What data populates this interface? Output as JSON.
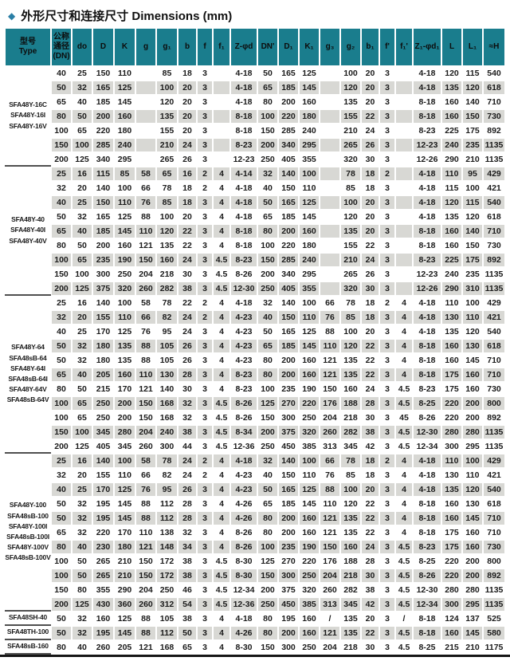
{
  "title": {
    "bullet": "◆",
    "text": "外形尺寸和连接尺寸 Dimensions (mm)"
  },
  "colors": {
    "header_bg": "#1a7d8d",
    "stripe": "#d8d8d4",
    "diamond": "#2a7fa6",
    "separator": "#4f4f4f",
    "bottom_rule": "#161616"
  },
  "table": {
    "header": [
      "型号\nType",
      "公称\n通径\n(DN)",
      "do",
      "D",
      "K",
      "g",
      "g₁",
      "b",
      "f",
      "f₁",
      "Z-φd",
      "DN'",
      "D₁",
      "K₁",
      "g₃",
      "g₂",
      "b₁",
      "f'",
      "f₁'",
      "Z₁-φd₁",
      "L",
      "L₁",
      "≈H"
    ],
    "groups": [
      {
        "type_labels": [
          "SFA48Y-16C",
          "SFA48Y-16I",
          "SFA48Y-16V"
        ],
        "rows": [
          [
            "40",
            "25",
            "150",
            "110",
            "",
            "85",
            "18",
            "3",
            "",
            "4-18",
            "50",
            "165",
            "125",
            "",
            "100",
            "20",
            "3",
            "",
            "4-18",
            "120",
            "115",
            "540"
          ],
          [
            "50",
            "32",
            "165",
            "125",
            "",
            "100",
            "20",
            "3",
            "",
            "4-18",
            "65",
            "185",
            "145",
            "",
            "120",
            "20",
            "3",
            "",
            "4-18",
            "135",
            "120",
            "618"
          ],
          [
            "65",
            "40",
            "185",
            "145",
            "",
            "120",
            "20",
            "3",
            "",
            "4-18",
            "80",
            "200",
            "160",
            "",
            "135",
            "20",
            "3",
            "",
            "8-18",
            "160",
            "140",
            "710"
          ],
          [
            "80",
            "50",
            "200",
            "160",
            "",
            "135",
            "20",
            "3",
            "",
            "8-18",
            "100",
            "220",
            "180",
            "",
            "155",
            "22",
            "3",
            "",
            "8-18",
            "160",
            "150",
            "730"
          ],
          [
            "100",
            "65",
            "220",
            "180",
            "",
            "155",
            "20",
            "3",
            "",
            "8-18",
            "150",
            "285",
            "240",
            "",
            "210",
            "24",
            "3",
            "",
            "8-23",
            "225",
            "175",
            "892"
          ],
          [
            "150",
            "100",
            "285",
            "240",
            "",
            "210",
            "24",
            "3",
            "",
            "8-23",
            "200",
            "340",
            "295",
            "",
            "265",
            "26",
            "3",
            "",
            "12-23",
            "240",
            "235",
            "1135"
          ],
          [
            "200",
            "125",
            "340",
            "295",
            "",
            "265",
            "26",
            "3",
            "",
            "12-23",
            "250",
            "405",
            "355",
            "",
            "320",
            "30",
            "3",
            "",
            "12-26",
            "290",
            "210",
            "1135"
          ]
        ]
      },
      {
        "type_labels": [
          "SFA48Y-40",
          "SFA48Y-40I",
          "SFA48Y-40V"
        ],
        "rows": [
          [
            "25",
            "16",
            "115",
            "85",
            "58",
            "65",
            "16",
            "2",
            "4",
            "4-14",
            "32",
            "140",
            "100",
            "",
            "78",
            "18",
            "2",
            "",
            "4-18",
            "110",
            "95",
            "429"
          ],
          [
            "32",
            "20",
            "140",
            "100",
            "66",
            "78",
            "18",
            "2",
            "4",
            "4-18",
            "40",
            "150",
            "110",
            "",
            "85",
            "18",
            "3",
            "",
            "4-18",
            "115",
            "100",
            "421"
          ],
          [
            "40",
            "25",
            "150",
            "110",
            "76",
            "85",
            "18",
            "3",
            "4",
            "4-18",
            "50",
            "165",
            "125",
            "",
            "100",
            "20",
            "3",
            "",
            "4-18",
            "120",
            "115",
            "540"
          ],
          [
            "50",
            "32",
            "165",
            "125",
            "88",
            "100",
            "20",
            "3",
            "4",
            "4-18",
            "65",
            "185",
            "145",
            "",
            "120",
            "20",
            "3",
            "",
            "4-18",
            "135",
            "120",
            "618"
          ],
          [
            "65",
            "40",
            "185",
            "145",
            "110",
            "120",
            "22",
            "3",
            "4",
            "8-18",
            "80",
            "200",
            "160",
            "",
            "135",
            "20",
            "3",
            "",
            "8-18",
            "160",
            "140",
            "710"
          ],
          [
            "80",
            "50",
            "200",
            "160",
            "121",
            "135",
            "22",
            "3",
            "4",
            "8-18",
            "100",
            "220",
            "180",
            "",
            "155",
            "22",
            "3",
            "",
            "8-18",
            "160",
            "150",
            "730"
          ],
          [
            "100",
            "65",
            "235",
            "190",
            "150",
            "160",
            "24",
            "3",
            "4.5",
            "8-23",
            "150",
            "285",
            "240",
            "",
            "210",
            "24",
            "3",
            "",
            "8-23",
            "225",
            "175",
            "892"
          ],
          [
            "150",
            "100",
            "300",
            "250",
            "204",
            "218",
            "30",
            "3",
            "4.5",
            "8-26",
            "200",
            "340",
            "295",
            "",
            "265",
            "26",
            "3",
            "",
            "12-23",
            "240",
            "235",
            "1135"
          ],
          [
            "200",
            "125",
            "375",
            "320",
            "260",
            "282",
            "38",
            "3",
            "4.5",
            "12-30",
            "250",
            "405",
            "355",
            "",
            "320",
            "30",
            "3",
            "",
            "12-26",
            "290",
            "310",
            "1135"
          ]
        ]
      },
      {
        "type_labels": [
          "SFA48Y-64",
          "SFA48sB-64",
          "SFA48Y-64I",
          "SFA48sB-64I",
          "SFA48Y-64V",
          "SFA48sB-64V"
        ],
        "rows": [
          [
            "25",
            "16",
            "140",
            "100",
            "58",
            "78",
            "22",
            "2",
            "4",
            "4-18",
            "32",
            "140",
            "100",
            "66",
            "78",
            "18",
            "2",
            "4",
            "4-18",
            "110",
            "100",
            "429"
          ],
          [
            "32",
            "20",
            "155",
            "110",
            "66",
            "82",
            "24",
            "2",
            "4",
            "4-23",
            "40",
            "150",
            "110",
            "76",
            "85",
            "18",
            "3",
            "4",
            "4-18",
            "130",
            "110",
            "421"
          ],
          [
            "40",
            "25",
            "170",
            "125",
            "76",
            "95",
            "24",
            "3",
            "4",
            "4-23",
            "50",
            "165",
            "125",
            "88",
            "100",
            "20",
            "3",
            "4",
            "4-18",
            "135",
            "120",
            "540"
          ],
          [
            "50",
            "32",
            "180",
            "135",
            "88",
            "105",
            "26",
            "3",
            "4",
            "4-23",
            "65",
            "185",
            "145",
            "110",
            "120",
            "22",
            "3",
            "4",
            "8-18",
            "160",
            "130",
            "618"
          ],
          [
            "50",
            "32",
            "180",
            "135",
            "88",
            "105",
            "26",
            "3",
            "4",
            "4-23",
            "80",
            "200",
            "160",
            "121",
            "135",
            "22",
            "3",
            "4",
            "8-18",
            "160",
            "145",
            "710"
          ],
          [
            "65",
            "40",
            "205",
            "160",
            "110",
            "130",
            "28",
            "3",
            "4",
            "8-23",
            "80",
            "200",
            "160",
            "121",
            "135",
            "22",
            "3",
            "4",
            "8-18",
            "175",
            "160",
            "710"
          ],
          [
            "80",
            "50",
            "215",
            "170",
            "121",
            "140",
            "30",
            "3",
            "4",
            "8-23",
            "100",
            "235",
            "190",
            "150",
            "160",
            "24",
            "3",
            "4.5",
            "8-23",
            "175",
            "160",
            "730"
          ],
          [
            "100",
            "65",
            "250",
            "200",
            "150",
            "168",
            "32",
            "3",
            "4.5",
            "8-26",
            "125",
            "270",
            "220",
            "176",
            "188",
            "28",
            "3",
            "4.5",
            "8-25",
            "220",
            "200",
            "800"
          ],
          [
            "100",
            "65",
            "250",
            "200",
            "150",
            "168",
            "32",
            "3",
            "4.5",
            "8-26",
            "150",
            "300",
            "250",
            "204",
            "218",
            "30",
            "3",
            "45",
            "8-26",
            "220",
            "200",
            "892"
          ],
          [
            "150",
            "100",
            "345",
            "280",
            "204",
            "240",
            "38",
            "3",
            "4.5",
            "8-34",
            "200",
            "375",
            "320",
            "260",
            "282",
            "38",
            "3",
            "4.5",
            "12-30",
            "280",
            "280",
            "1135"
          ],
          [
            "200",
            "125",
            "405",
            "345",
            "260",
            "300",
            "44",
            "3",
            "4.5",
            "12-36",
            "250",
            "450",
            "385",
            "313",
            "345",
            "42",
            "3",
            "4.5",
            "12-34",
            "300",
            "295",
            "1135"
          ]
        ]
      },
      {
        "type_labels": [
          "SFA48Y-100",
          "SFA48sB-100",
          "SFA48Y-100I",
          "SFA48sB-100I",
          "SFA48Y-100V",
          "SFA48sB-100V"
        ],
        "rows": [
          [
            "25",
            "16",
            "140",
            "100",
            "58",
            "78",
            "24",
            "2",
            "4",
            "4-18",
            "32",
            "140",
            "100",
            "66",
            "78",
            "18",
            "2",
            "4",
            "4-18",
            "110",
            "100",
            "429"
          ],
          [
            "32",
            "20",
            "155",
            "110",
            "66",
            "82",
            "24",
            "2",
            "4",
            "4-23",
            "40",
            "150",
            "110",
            "76",
            "85",
            "18",
            "3",
            "4",
            "4-18",
            "130",
            "110",
            "421"
          ],
          [
            "40",
            "25",
            "170",
            "125",
            "76",
            "95",
            "26",
            "3",
            "4",
            "4-23",
            "50",
            "165",
            "125",
            "88",
            "100",
            "20",
            "3",
            "4",
            "4-18",
            "135",
            "120",
            "540"
          ],
          [
            "50",
            "32",
            "195",
            "145",
            "88",
            "112",
            "28",
            "3",
            "4",
            "4-26",
            "65",
            "185",
            "145",
            "110",
            "120",
            "22",
            "3",
            "4",
            "8-18",
            "160",
            "130",
            "618"
          ],
          [
            "50",
            "32",
            "195",
            "145",
            "88",
            "112",
            "28",
            "3",
            "4",
            "4-26",
            "80",
            "200",
            "160",
            "121",
            "135",
            "22",
            "3",
            "4",
            "8-18",
            "160",
            "145",
            "710"
          ],
          [
            "65",
            "32",
            "220",
            "170",
            "110",
            "138",
            "32",
            "3",
            "4",
            "8-26",
            "80",
            "200",
            "160",
            "121",
            "135",
            "22",
            "3",
            "4",
            "8-18",
            "175",
            "160",
            "710"
          ],
          [
            "80",
            "40",
            "230",
            "180",
            "121",
            "148",
            "34",
            "3",
            "4",
            "8-26",
            "100",
            "235",
            "190",
            "150",
            "160",
            "24",
            "3",
            "4.5",
            "8-23",
            "175",
            "160",
            "730"
          ],
          [
            "100",
            "50",
            "265",
            "210",
            "150",
            "172",
            "38",
            "3",
            "4.5",
            "8-30",
            "125",
            "270",
            "220",
            "176",
            "188",
            "28",
            "3",
            "4.5",
            "8-25",
            "220",
            "200",
            "800"
          ],
          [
            "100",
            "50",
            "265",
            "210",
            "150",
            "172",
            "38",
            "3",
            "4.5",
            "8-30",
            "150",
            "300",
            "250",
            "204",
            "218",
            "30",
            "3",
            "4.5",
            "8-26",
            "220",
            "200",
            "892"
          ],
          [
            "150",
            "80",
            "355",
            "290",
            "204",
            "250",
            "46",
            "3",
            "4.5",
            "12-34",
            "200",
            "375",
            "320",
            "260",
            "282",
            "38",
            "3",
            "4.5",
            "12-30",
            "280",
            "280",
            "1135"
          ],
          [
            "200",
            "125",
            "430",
            "360",
            "260",
            "312",
            "54",
            "3",
            "4.5",
            "12-36",
            "250",
            "450",
            "385",
            "313",
            "345",
            "42",
            "3",
            "4.5",
            "12-34",
            "300",
            "295",
            "1135"
          ]
        ]
      },
      {
        "type_labels": [
          "SFA48SH-40"
        ],
        "rows": [
          [
            "50",
            "32",
            "160",
            "125",
            "88",
            "105",
            "38",
            "3",
            "4",
            "4-18",
            "80",
            "195",
            "160",
            "/",
            "135",
            "20",
            "3",
            "/",
            "8-18",
            "124",
            "137",
            "525"
          ]
        ]
      },
      {
        "type_labels": [
          "SFA48TH-100"
        ],
        "rows": [
          [
            "50",
            "32",
            "195",
            "145",
            "88",
            "112",
            "50",
            "3",
            "4",
            "4-26",
            "80",
            "200",
            "160",
            "121",
            "135",
            "22",
            "3",
            "4.5",
            "8-18",
            "160",
            "145",
            "580"
          ]
        ]
      },
      {
        "type_labels": [
          "SFA48sB-160"
        ],
        "rows": [
          [
            "80",
            "40",
            "260",
            "205",
            "121",
            "168",
            "65",
            "3",
            "4",
            "8-30",
            "150",
            "300",
            "250",
            "204",
            "218",
            "30",
            "3",
            "4.5",
            "8-25",
            "215",
            "210",
            "1175"
          ]
        ]
      }
    ]
  }
}
